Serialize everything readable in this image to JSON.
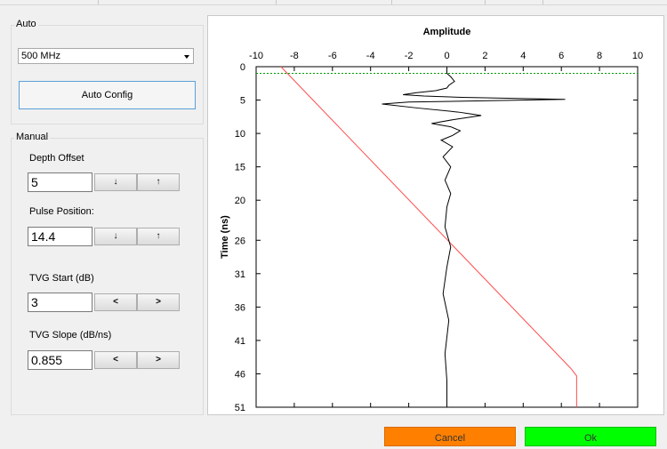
{
  "auto_group": {
    "title": "Auto",
    "frequency_select": {
      "value": "500 MHz"
    },
    "auto_config_label": "Auto Config"
  },
  "manual_group": {
    "title": "Manual",
    "depth_offset": {
      "label": "Depth Offset",
      "value": "5",
      "down": "↓",
      "up": "↑"
    },
    "pulse_position": {
      "label": "Pulse Position:",
      "value": "14.4",
      "down": "↓",
      "up": "↑"
    },
    "tvg_start": {
      "label": "TVG Start (dB)",
      "value": "3",
      "dec": "<",
      "inc": ">"
    },
    "tvg_slope": {
      "label": "TVG Slope (dB/ns)",
      "value": "0.855",
      "dec": "<",
      "inc": ">"
    }
  },
  "footer": {
    "cancel_label": "Cancel",
    "ok_label": "Ok"
  },
  "chart_data": {
    "type": "line",
    "title": "Amplitude",
    "xlabel": "",
    "ylabel": "Time (ns)",
    "xlim": [
      -10,
      10
    ],
    "ylim": [
      0,
      51
    ],
    "x_ticks": [
      -10,
      -8,
      -6,
      -4,
      -2,
      0,
      2,
      4,
      6,
      8,
      10
    ],
    "y_ticks": [
      0,
      5,
      10,
      15,
      20,
      26,
      31,
      36,
      41,
      46,
      51
    ],
    "grid": false,
    "colors": {
      "trace": "#000000",
      "tvg": "#ff4b4b",
      "marker": "#009900"
    },
    "marker_line": {
      "y": 1
    },
    "tvg_curve": {
      "x": [
        -8.7,
        6.5,
        6.8,
        6.8
      ],
      "y": [
        0,
        45.2,
        46.3,
        51
      ]
    },
    "trace": {
      "x": [
        0,
        0,
        0.2,
        0.4,
        0.1,
        0,
        -0.6,
        -1.6,
        -2.3,
        -1.2,
        0.8,
        6.2,
        2.2,
        -2.0,
        -3.4,
        -1.5,
        0.6,
        1.8,
        0.4,
        -0.8,
        0.2,
        0.7,
        0.3,
        -0.3,
        0.3,
        -0.2,
        0.2,
        -0.1,
        0.2,
        0,
        -0.1,
        0.2,
        0,
        -0.2,
        0.1,
        -0.1,
        0,
        0
      ],
      "y": [
        0,
        1,
        1.5,
        2.2,
        2.8,
        3.2,
        3.6,
        3.9,
        4.2,
        4.4,
        4.6,
        4.9,
        5.1,
        5.3,
        5.6,
        6.2,
        6.8,
        7.3,
        7.9,
        8.5,
        9.0,
        9.6,
        10.3,
        11.0,
        12.0,
        13.5,
        15.0,
        17.0,
        19.0,
        21.0,
        24.0,
        27.0,
        30.0,
        34.0,
        38.0,
        43.0,
        47.0,
        51.0
      ]
    }
  }
}
